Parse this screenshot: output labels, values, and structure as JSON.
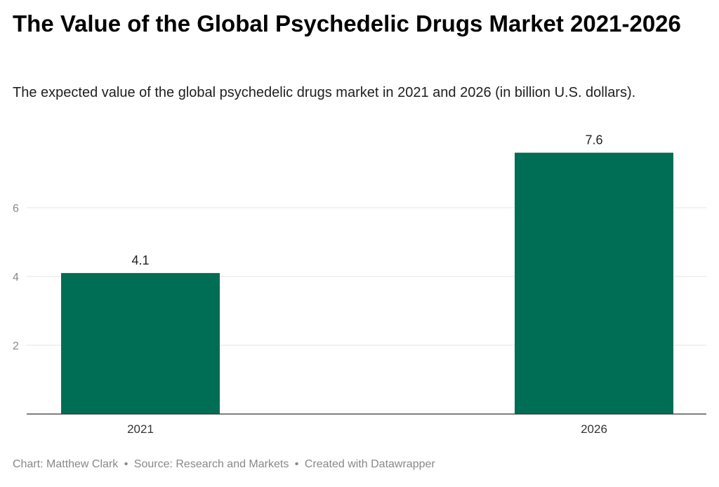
{
  "header": {
    "title": "The Value of the Global Psychedelic Drugs Market 2021-2026",
    "subtitle": "The expected value of the global psychedelic drugs market in 2021 and 2026 (in billion U.S. dollars)."
  },
  "chart_data": {
    "type": "bar",
    "title": "The Value of the Global Psychedelic Drugs Market 2021-2026",
    "subtitle": "The expected value of the global psychedelic drugs market in 2021 and 2026 (in billion U.S. dollars).",
    "categories": [
      "2021",
      "2026"
    ],
    "values": [
      4.1,
      7.6
    ],
    "value_labels": [
      "4.1",
      "7.6"
    ],
    "xlabel": "",
    "ylabel": "",
    "ylim": [
      0,
      7.6
    ],
    "yticks": [
      2,
      4,
      6
    ],
    "ytick_labels": [
      "2",
      "4",
      "6"
    ],
    "grid": true,
    "legend": "none",
    "bar_color": "#006e54"
  },
  "footer": {
    "chart_credit": "Chart: Matthew Clark",
    "separator": "•",
    "source": "Source: Research and Markets",
    "created_with": "Created with Datawrapper"
  },
  "colors": {
    "bar": "#006e54",
    "gridline": "#e5e5e5",
    "axis": "#333333",
    "tick_label": "#888888",
    "footer": "#888888"
  }
}
